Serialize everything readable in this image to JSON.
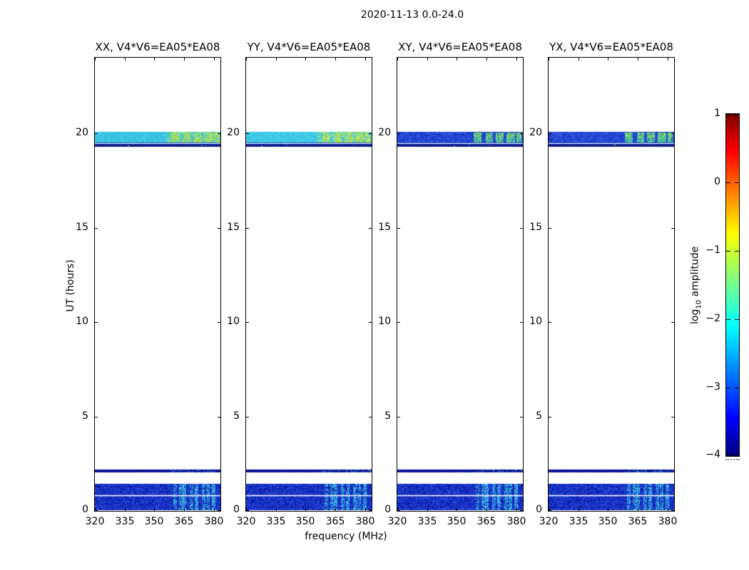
{
  "figure": {
    "title": "2020-11-13 0.0-24.0",
    "xlabel": "frequency (MHz)",
    "ylabel": "UT (hours)",
    "colorbar_label": {
      "pre": "log",
      "sub": "10",
      "post": " amplitude"
    }
  },
  "chart_data": {
    "type": "heatmap",
    "title": "2020-11-13 0.0-24.0",
    "date": "2020-11-13",
    "time_range_label": "0.0-24.0",
    "baseline": "V4*V6=EA05*EA08",
    "subplots": [
      {
        "pol": "XX",
        "title": "XX, V4*V6=EA05*EA08"
      },
      {
        "pol": "YY",
        "title": "YY, V4*V6=EA05*EA08"
      },
      {
        "pol": "XY",
        "title": "XY, V4*V6=EA05*EA08"
      },
      {
        "pol": "YX",
        "title": "YX, V4*V6=EA05*EA08"
      }
    ],
    "x_axis": {
      "label": "frequency (MHz)",
      "ticks": [
        320,
        335,
        350,
        365,
        380
      ],
      "range": [
        320,
        383.3
      ]
    },
    "y_axis": {
      "label": "UT (hours)",
      "ticks": [
        0,
        5,
        10,
        15,
        20
      ],
      "range": [
        0,
        24
      ]
    },
    "colorbar": {
      "label": "log10 amplitude",
      "range": [
        -4,
        1
      ],
      "ticks": [
        1,
        0,
        -1,
        -2,
        -3,
        -4
      ],
      "tick_labels": [
        "1",
        "0",
        "−1",
        "−2",
        "−3",
        "−4"
      ],
      "colormap": "jet",
      "gradient_stops": [
        {
          "pos": 0,
          "color": "#7f0000"
        },
        {
          "pos": 11,
          "color": "#ff0000"
        },
        {
          "pos": 35,
          "color": "#ffff00"
        },
        {
          "pos": 62,
          "color": "#00ffff"
        },
        {
          "pos": 89,
          "color": "#0000ff"
        },
        {
          "pos": 100,
          "color": "#000080"
        }
      ]
    },
    "features": {
      "scan_top": {
        "ut_range": [
          19.47,
          20.08
        ],
        "freq_range": [
          320,
          383.3
        ],
        "mean_level_log10": {
          "XX": -2.1,
          "YY": -2.0,
          "XY": -2.9,
          "YX": -2.9
        },
        "base_color": {
          "XX": "#3bc4e4",
          "YY": "#40c8e6",
          "XY": "#2342d2",
          "YX": "#2342d2"
        },
        "rfi_speckle_range_mhz": [
          356,
          382.6
        ],
        "rfi_blocks_mhz": [
          [
            358.5,
            362.5
          ],
          [
            364.5,
            368.3
          ],
          [
            369.5,
            373.5
          ],
          [
            375.2,
            379.3
          ],
          [
            380.2,
            382.6
          ]
        ],
        "rfi_level_log10": -1.2,
        "rfi_color": {
          "XX": "#b2e04c",
          "YY": "#bfe24a",
          "XY": "#55d08c",
          "YX": "#55d08c"
        }
      },
      "scan_top_edge": {
        "ut_range": [
          19.3,
          19.42
        ],
        "level_log10": -3.8,
        "color": "#0b1c8e"
      },
      "scan_mid": {
        "ut_range": [
          2.05,
          2.2
        ],
        "level_log10": -3.9,
        "color": "#071095",
        "speckle_color": "#2f9cd4"
      },
      "scan_bottom": {
        "ut_range": [
          0.05,
          1.45
        ],
        "level_log10": -3.4,
        "base_color": "#1a37d0",
        "dark_color": "#0a1895",
        "light_color": "#2e5ce6",
        "gap_line_ut": 0.8,
        "gap_line_color": "#ffffff",
        "rfi_streak_color": "#3cc2e2",
        "rfi_streaks_mhz": [
          [
            360.3,
            0.45
          ],
          [
            363.4,
            0.5
          ],
          [
            365.3,
            0.65
          ],
          [
            368.7,
            0.5
          ],
          [
            371.2,
            0.6
          ],
          [
            374.8,
            0.55
          ],
          [
            377.0,
            0.5
          ],
          [
            380.0,
            0.6
          ]
        ]
      }
    }
  },
  "colors": {
    "background": "#ffffff",
    "frame": "#000000",
    "text": "#000000"
  }
}
